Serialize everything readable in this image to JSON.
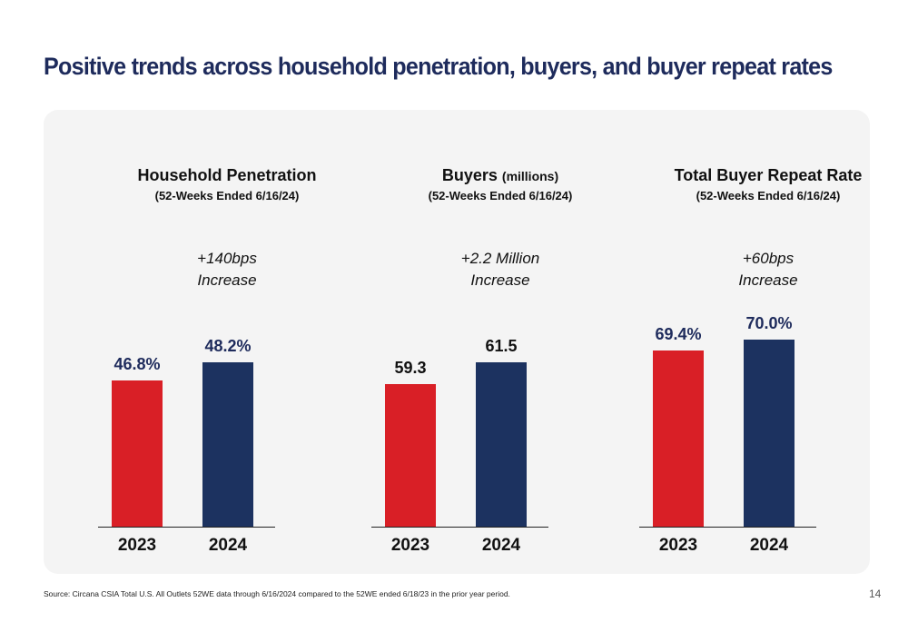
{
  "slide": {
    "title": "Positive trends across household penetration, buyers, and buyer repeat rates",
    "source": "Source: Circana CSIA Total U.S. All Outlets 52WE data through 6/16/2024 compared to the 52WE ended 6/18/23 in the prior year period.",
    "page_number": "14",
    "colors": {
      "year_2023": "#d91f26",
      "year_2024": "#1c3260",
      "title": "#1e2b5c",
      "panel_bg": "#f4f4f4"
    }
  },
  "chart_data": [
    {
      "type": "bar",
      "title": "Household Penetration",
      "title_unit": "",
      "subtitle": "(52-Weeks Ended 6/16/24)",
      "delta_line1": "+140bps",
      "delta_line2": "Increase",
      "categories": [
        "2023",
        "2024"
      ],
      "values": [
        46.8,
        48.2
      ],
      "data_labels": [
        "46.8%",
        "48.2%"
      ],
      "ylim": [
        35.5,
        51.6
      ],
      "grid": false,
      "xlabel": "",
      "ylabel": ""
    },
    {
      "type": "bar",
      "title": "Buyers",
      "title_unit": "(millions)",
      "subtitle": "(52-Weeks Ended 6/16/24)",
      "delta_line1": "+2.2 Million",
      "delta_line2": "Increase",
      "categories": [
        "2023",
        "2024"
      ],
      "values": [
        59.3,
        61.5
      ],
      "data_labels": [
        "59.3",
        "61.5"
      ],
      "ylim": [
        44.9,
        66.0
      ],
      "grid": false,
      "xlabel": "",
      "ylabel": ""
    },
    {
      "type": "bar",
      "title": "Total Buyer Repeat Rate",
      "title_unit": "",
      "subtitle": "(52-Weeks Ended 6/16/24)",
      "delta_line1": "+60bps",
      "delta_line2": "Increase",
      "categories": [
        "2023",
        "2024"
      ],
      "values": [
        69.4,
        70.0
      ],
      "data_labels": [
        "69.4%",
        "70.0%"
      ],
      "ylim": [
        59.7,
        71.2
      ],
      "grid": false,
      "xlabel": "",
      "ylabel": ""
    }
  ]
}
